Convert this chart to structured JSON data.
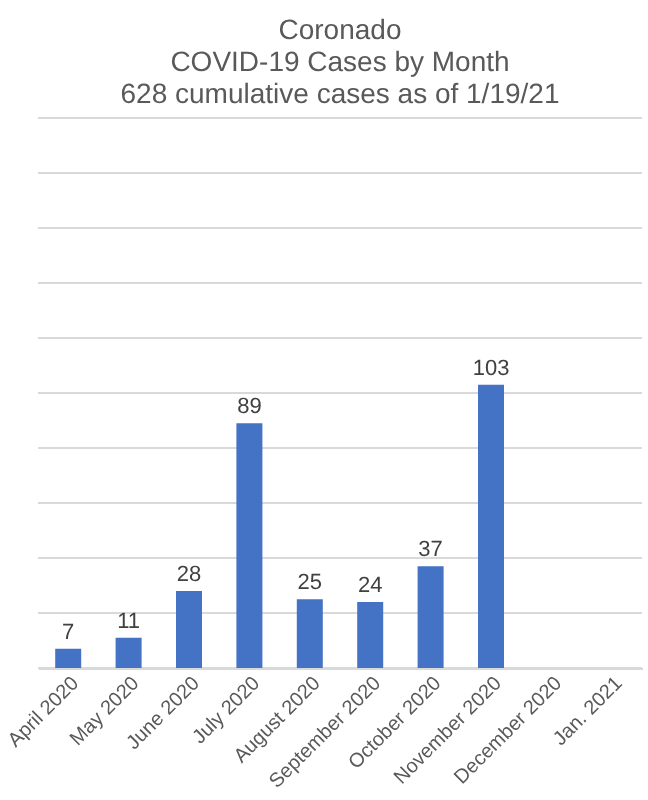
{
  "chart_data": {
    "type": "bar",
    "title": [
      "Coronado",
      "COVID-19 Cases by Month",
      "628 cumulative cases as of 1/19/21"
    ],
    "categories": [
      "April 2020",
      "May 2020",
      "June 2020",
      "July 2020",
      "August 2020",
      "September 2020",
      "October 2020",
      "November 2020",
      "December 2020",
      "Jan. 2021"
    ],
    "values": [
      7,
      11,
      28,
      89,
      25,
      24,
      37,
      103,
      null,
      null
    ],
    "color": "#4472c4",
    "ylim": [
      0,
      200
    ],
    "yticks": [
      {
        "value": 0,
        "label": null
      },
      {
        "value": 20,
        "label": null
      },
      {
        "value": 40,
        "label": null
      },
      {
        "value": 60,
        "label": null
      },
      {
        "value": 80,
        "label": null
      },
      {
        "value": 100,
        "label": null
      },
      {
        "value": 120,
        "label": null
      },
      {
        "value": 140,
        "label": null
      },
      {
        "value": 160,
        "label": null
      },
      {
        "value": 180,
        "label": null
      },
      {
        "value": 200,
        "label": null
      }
    ],
    "grid": "y",
    "tick_labels": "x",
    "data_labels": true
  }
}
